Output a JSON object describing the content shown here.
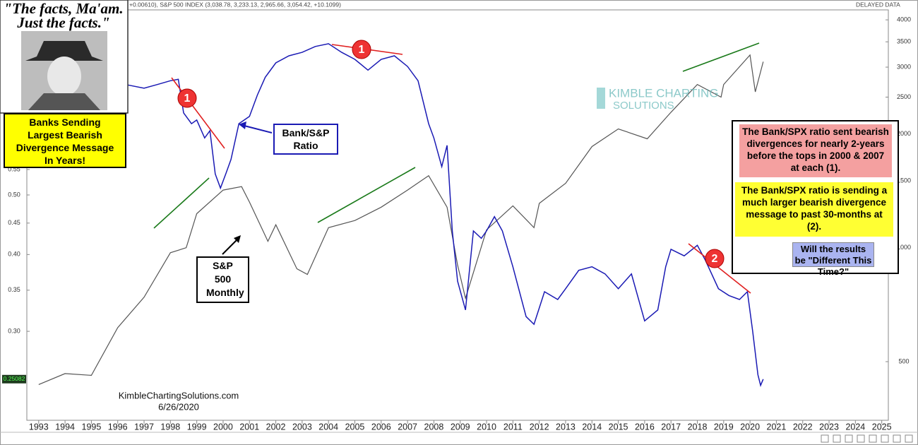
{
  "header": {
    "ticker": "+0.00610), S&P 500 INDEX (3,038.78, 3,233.13, 2,965.66, 3,054.42, +10.1099)",
    "status": "DELAYED DATA"
  },
  "chart_data": {
    "type": "line",
    "log_scale": true,
    "xlim": [
      1992.55,
      2025.25
    ],
    "xticks": [
      1993,
      1994,
      1995,
      1996,
      1997,
      1998,
      1999,
      2000,
      2001,
      2002,
      2003,
      2004,
      2005,
      2006,
      2007,
      2008,
      2009,
      2010,
      2011,
      2012,
      2013,
      2014,
      2015,
      2016,
      2017,
      2018,
      2019,
      2020,
      2021,
      2022,
      2023,
      2024,
      2025
    ],
    "ylim": [
      0.215,
      1.0
    ],
    "yticks": [
      {
        "value": 0.3,
        "label": "0.30"
      },
      0.35,
      {
        "value": 0.4,
        "label": "0.40"
      },
      0.45,
      {
        "value": 0.5,
        "label": "0.50"
      },
      0.55
    ],
    "y2lim": [
      350,
      4250
    ],
    "y2ticks": [
      500,
      1000,
      1500,
      2000,
      2500,
      3000,
      3500,
      4000
    ],
    "last_value": 0.25082,
    "series": [
      {
        "name": "Bank/S&P Ratio",
        "color": "#1a1ab4",
        "x": [
          1996.3,
          1997.0,
          1997.5,
          1998.0,
          1998.3,
          1998.5,
          1998.8,
          1999.0,
          1999.3,
          1999.5,
          1999.7,
          1999.9,
          2000.1,
          2000.3,
          2000.6,
          2001.0,
          2001.3,
          2001.6,
          2002.0,
          2002.5,
          2003.0,
          2003.5,
          2004.0,
          2004.5,
          2005.0,
          2005.5,
          2006.0,
          2006.5,
          2007.0,
          2007.4,
          2007.8,
          2008.0,
          2008.3,
          2008.5,
          2008.7,
          2008.9,
          2009.2,
          2009.5,
          2009.8,
          2010.0,
          2010.3,
          2010.6,
          2011.0,
          2011.5,
          2011.8,
          2012.2,
          2012.7,
          2013.0,
          2013.5,
          2014.0,
          2014.5,
          2015.0,
          2015.5,
          2016.0,
          2016.5,
          2016.8,
          2017.0,
          2017.5,
          2018.0,
          2018.3,
          2018.8,
          2019.2,
          2019.6,
          2019.9,
          2020.1,
          2020.3,
          2020.4,
          2020.5
        ],
        "values": [
          0.756,
          0.746,
          0.756,
          0.767,
          0.771,
          0.68,
          0.653,
          0.662,
          0.619,
          0.636,
          0.541,
          0.513,
          0.541,
          0.571,
          0.653,
          0.671,
          0.727,
          0.777,
          0.82,
          0.842,
          0.853,
          0.872,
          0.881,
          0.853,
          0.831,
          0.798,
          0.831,
          0.842,
          0.809,
          0.767,
          0.653,
          0.619,
          0.556,
          0.602,
          0.437,
          0.362,
          0.325,
          0.437,
          0.425,
          0.437,
          0.461,
          0.437,
          0.382,
          0.317,
          0.308,
          0.348,
          0.338,
          0.352,
          0.377,
          0.382,
          0.372,
          0.352,
          0.372,
          0.312,
          0.325,
          0.382,
          0.408,
          0.398,
          0.414,
          0.392,
          0.352,
          0.343,
          0.338,
          0.348,
          0.3,
          0.255,
          0.245,
          0.25082
        ]
      },
      {
        "name": "S&P 500 Monthly",
        "color": "#555555",
        "axis": "y2",
        "x": [
          1993.0,
          1994.0,
          1995.0,
          1996.0,
          1997.0,
          1998.0,
          1998.6,
          1999.0,
          2000.0,
          2000.7,
          2001.0,
          2001.7,
          2002.0,
          2002.8,
          2003.2,
          2004.0,
          2005.0,
          2006.0,
          2007.0,
          2007.8,
          2008.5,
          2008.9,
          2009.2,
          2010.0,
          2011.0,
          2011.8,
          2012.0,
          2013.0,
          2014.0,
          2015.0,
          2016.1,
          2017.0,
          2018.0,
          2018.9,
          2019.0,
          2020.0,
          2020.2,
          2020.5
        ],
        "values": [
          435,
          465,
          460,
          615,
          740,
          970,
          1000,
          1230,
          1420,
          1450,
          1320,
          1040,
          1150,
          880,
          850,
          1130,
          1180,
          1280,
          1420,
          1550,
          1280,
          900,
          735,
          1115,
          1290,
          1130,
          1310,
          1480,
          1850,
          2060,
          1940,
          2280,
          2700,
          2500,
          2700,
          3230,
          2580,
          3100
        ]
      }
    ],
    "annotations": {
      "quote_lines": [
        "\"The facts, Ma'am.",
        "Just the facts.\""
      ],
      "headline": "Banks Sending Largest Bearish Divergence Message In Years!",
      "note_1": "The Bank/SPX ratio sent bearish divergences for nearly 2-years before the tops in 2000 & 2007 at each (1).",
      "note_2": "The Bank/SPX ratio is sending a much larger bearish divergence message to past 30-months at (2).",
      "note_3": "Will the results be \"Different This Time?\"",
      "markers": [
        "1",
        "1",
        "2"
      ],
      "watermark": [
        "KIMBLE CHARTING",
        "SOLUTIONS"
      ],
      "credit": "KimbleChartingSolutions.com",
      "date": "6/26/2020"
    }
  }
}
